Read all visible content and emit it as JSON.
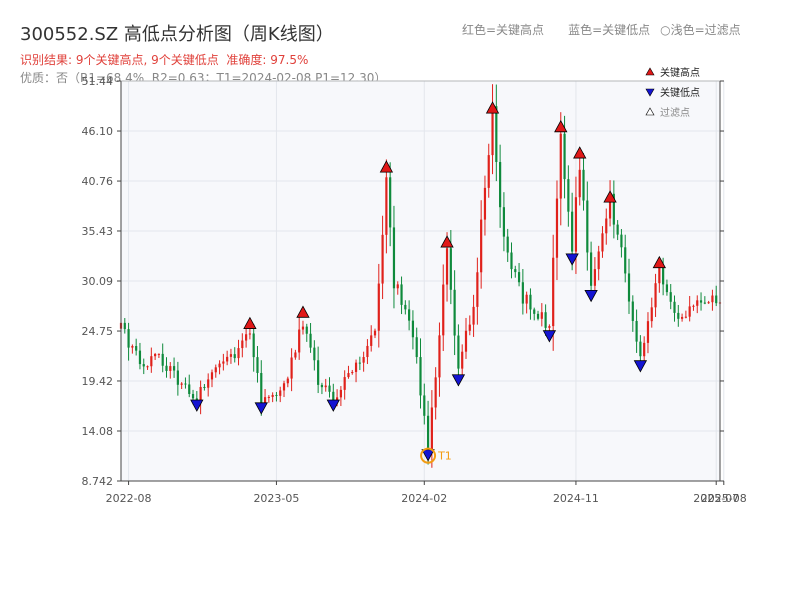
{
  "title": "300552.SZ 高低点分析图（周K线图）",
  "header_legend": {
    "red": "红色=关键高点",
    "blue": "蓝色=关键低点",
    "light": "○浅色=过滤点"
  },
  "result_line": {
    "prefix": "识别结果: ",
    "highs": "9个关键高点",
    "sep": ", ",
    "lows": "9个关键低点",
    "accuracy_label": "  准确度: ",
    "accuracy": "97.5%"
  },
  "quality_line": "优质：否（R1=68.4%, R2=0.63；T1=2024-02-08 P1=12.30）",
  "colors": {
    "up": "#e0211b",
    "down": "#0f8a3c",
    "high_marker": "#e01818",
    "low_marker": "#1414d2",
    "t1": "#f39c12",
    "plot_bg": "#f7f8fb",
    "grid": "#e3e6ec"
  },
  "chart_data": {
    "type": "candlestick",
    "title": "300552.SZ 高低点分析图（周K线图）",
    "x_range": [
      "2022-07-21",
      "2025-07-31"
    ],
    "ylim": [
      8.742,
      51.44
    ],
    "y_ticks": [
      8.742,
      14.08,
      19.42,
      24.75,
      30.09,
      35.43,
      40.76,
      46.1,
      51.44
    ],
    "y_tick_labels": [
      "8.742",
      "14.08",
      "19.42",
      "24.75",
      "30.09",
      "35.43",
      "40.76",
      "46.10",
      "51.44"
    ],
    "x_ticks": [
      {
        "date": "2022-08-04",
        "label": "2022-08"
      },
      {
        "date": "2023-05-04",
        "label": "2023-05"
      },
      {
        "date": "2024-02-01",
        "label": "2024-02"
      },
      {
        "date": "2024-11-07",
        "label": "2024-11"
      },
      {
        "date": "2025-07-24",
        "label": "2025-07"
      },
      {
        "date": "2025-08-07",
        "label": "2025-08"
      }
    ],
    "grid": true,
    "legend": {
      "position": "top-right",
      "items": [
        {
          "label": "关键高点",
          "marker": "triangle-up",
          "color": "#e01818"
        },
        {
          "label": "关键低点",
          "marker": "triangle-down",
          "color": "#1414d2"
        },
        {
          "label": "过滤点",
          "marker": "triangle-up-light",
          "color": "#cccccc"
        }
      ]
    },
    "anchors": [
      {
        "date": "2022-07-21",
        "close": 25.0
      },
      {
        "date": "2022-08-25",
        "close": 21.5
      },
      {
        "date": "2022-09-29",
        "close": 21.8
      },
      {
        "date": "2022-11-03",
        "close": 19.5
      },
      {
        "date": "2022-12-08",
        "close": 17.6
      },
      {
        "date": "2023-01-12",
        "close": 21.0
      },
      {
        "date": "2023-02-16",
        "close": 22.5
      },
      {
        "date": "2023-03-16",
        "close": 24.8
      },
      {
        "date": "2023-04-06",
        "close": 17.3
      },
      {
        "date": "2023-05-18",
        "close": 18.8
      },
      {
        "date": "2023-06-22",
        "close": 26.0
      },
      {
        "date": "2023-07-20",
        "close": 19.5
      },
      {
        "date": "2023-08-17",
        "close": 17.6
      },
      {
        "date": "2023-09-28",
        "close": 21.0
      },
      {
        "date": "2023-11-02",
        "close": 24.5
      },
      {
        "date": "2023-11-23",
        "close": 41.5
      },
      {
        "date": "2023-12-07",
        "close": 30.0
      },
      {
        "date": "2024-01-11",
        "close": 24.5
      },
      {
        "date": "2024-02-08",
        "close": 12.3
      },
      {
        "date": "2024-02-22",
        "close": 20.0
      },
      {
        "date": "2024-03-14",
        "close": 33.5
      },
      {
        "date": "2024-04-04",
        "close": 20.3
      },
      {
        "date": "2024-05-02",
        "close": 28.0
      },
      {
        "date": "2024-06-06",
        "close": 47.8
      },
      {
        "date": "2024-06-27",
        "close": 34.0
      },
      {
        "date": "2024-08-01",
        "close": 28.5
      },
      {
        "date": "2024-09-19",
        "close": 25.0
      },
      {
        "date": "2024-10-10",
        "close": 45.8
      },
      {
        "date": "2024-10-31",
        "close": 33.2
      },
      {
        "date": "2024-11-14",
        "close": 43.0
      },
      {
        "date": "2024-12-05",
        "close": 29.3
      },
      {
        "date": "2025-01-09",
        "close": 38.3
      },
      {
        "date": "2025-02-06",
        "close": 31.0
      },
      {
        "date": "2025-03-06",
        "close": 21.8
      },
      {
        "date": "2025-04-10",
        "close": 31.3
      },
      {
        "date": "2025-05-08",
        "close": 26.5
      },
      {
        "date": "2025-07-31",
        "close": 28.4
      }
    ],
    "key_highs": [
      {
        "date": "2023-03-16",
        "price": 24.8
      },
      {
        "date": "2023-06-22",
        "price": 26.0
      },
      {
        "date": "2023-11-23",
        "price": 41.5
      },
      {
        "date": "2024-03-14",
        "price": 33.5
      },
      {
        "date": "2024-06-06",
        "price": 47.8
      },
      {
        "date": "2024-10-10",
        "price": 45.8
      },
      {
        "date": "2024-11-14",
        "price": 43.0
      },
      {
        "date": "2025-01-09",
        "price": 38.3
      },
      {
        "date": "2025-04-10",
        "price": 31.3
      }
    ],
    "key_lows": [
      {
        "date": "2022-12-08",
        "price": 17.6
      },
      {
        "date": "2023-04-06",
        "price": 17.3
      },
      {
        "date": "2023-08-17",
        "price": 17.6
      },
      {
        "date": "2024-02-08",
        "price": 12.3
      },
      {
        "date": "2024-04-04",
        "price": 20.3
      },
      {
        "date": "2024-09-19",
        "price": 25.0
      },
      {
        "date": "2024-10-31",
        "price": 33.2
      },
      {
        "date": "2024-12-05",
        "price": 29.3
      },
      {
        "date": "2025-03-06",
        "price": 21.8
      }
    ],
    "t1": {
      "date": "2024-02-08",
      "price": 12.3,
      "label": "T1"
    }
  }
}
